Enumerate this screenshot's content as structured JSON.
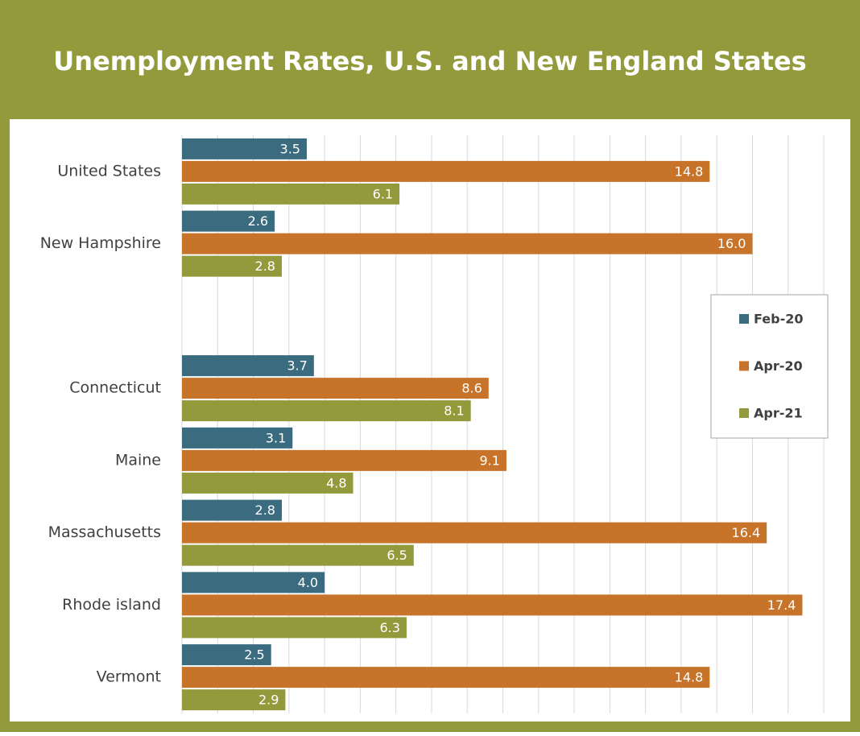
{
  "chart_data": {
    "type": "hbar",
    "title": "Unemployment Rates, U.S. and New England States",
    "categories": [
      "United States",
      "New Hampshire",
      null,
      "Connecticut",
      "Maine",
      "Massachusetts",
      "Rhode island",
      "Vermont"
    ],
    "series": [
      {
        "name": "Feb-20",
        "color": "#3b6b7e",
        "values": [
          3.5,
          2.6,
          null,
          3.7,
          3.1,
          2.8,
          4.0,
          2.5
        ],
        "value_labels": [
          "3.5",
          "2.6",
          null,
          "3.7",
          "3.1",
          "2.8",
          "4.0",
          "2.5"
        ]
      },
      {
        "name": "Apr-20",
        "color": "#c8732a",
        "values": [
          14.8,
          16.0,
          null,
          8.6,
          9.1,
          16.4,
          17.4,
          14.8
        ],
        "value_labels": [
          "14.8",
          "16.0",
          null,
          "8.6",
          "9.1",
          "16.4",
          "17.4",
          "14.8"
        ]
      },
      {
        "name": "Apr-21",
        "color": "#939a3c",
        "values": [
          6.1,
          2.8,
          null,
          8.1,
          4.8,
          6.5,
          6.3,
          2.9
        ],
        "value_labels": [
          "6.1",
          "2.8",
          null,
          "8.1",
          "4.8",
          "6.5",
          "6.3",
          "2.9"
        ]
      }
    ],
    "xlim": [
      0,
      18
    ],
    "xticks": [
      0,
      1,
      2,
      3,
      4,
      5,
      6,
      7,
      8,
      9,
      10,
      11,
      12,
      13,
      14,
      15,
      16,
      17,
      18
    ],
    "grid": true,
    "legend_position": "right"
  }
}
